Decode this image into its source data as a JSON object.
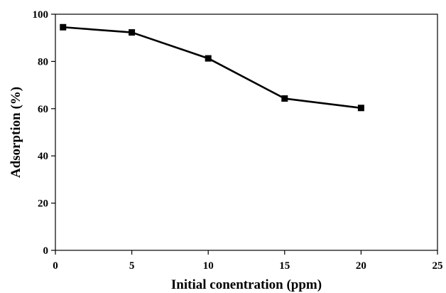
{
  "chart_data": {
    "type": "line",
    "title": "",
    "xlabel": "Initial conentration (ppm)",
    "ylabel": "Adsorption (%)",
    "xlim": [
      0,
      25
    ],
    "ylim": [
      0,
      100
    ],
    "xticks": [
      "0",
      "5",
      "10",
      "15",
      "20",
      "25"
    ],
    "yticks": [
      "0",
      "20",
      "40",
      "60",
      "80",
      "100"
    ],
    "grid": false,
    "legend": "none",
    "series": [
      {
        "color": "#000000",
        "marker": "square",
        "x": [
          0.5,
          5,
          10,
          15,
          20
        ],
        "y": [
          94.5,
          92.3,
          81.3,
          64.3,
          60.3
        ]
      }
    ]
  }
}
